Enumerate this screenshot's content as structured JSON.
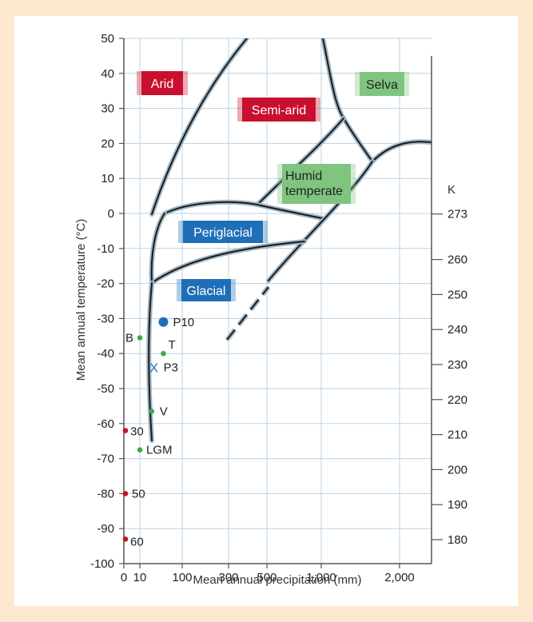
{
  "chart_data": {
    "type": "scatter",
    "xlabel": "Mean annual precipitation (mm)",
    "ylabel": "Mean annual temperature (°C)",
    "y2label": "K",
    "x_ticks": [
      {
        "label": "0",
        "value": 0
      },
      {
        "label": "10",
        "value": 10
      },
      {
        "label": "100",
        "value": 100
      },
      {
        "label": "300",
        "value": 300
      },
      {
        "label": "500",
        "value": 500
      },
      {
        "label": "1,000",
        "value": 1000
      },
      {
        "label": "2,000",
        "value": 2000
      }
    ],
    "ylim": [
      -100,
      50
    ],
    "y_ticks": [
      "50",
      "40",
      "30",
      "20",
      "10",
      "0",
      "-10",
      "-20",
      "-30",
      "-40",
      "-50",
      "-60",
      "-70",
      "-80",
      "-90",
      "-100"
    ],
    "y2_ticks": [
      "273",
      "260",
      "250",
      "240",
      "230",
      "220",
      "210",
      "200",
      "190",
      "180"
    ],
    "y2_values": [
      273,
      260,
      250,
      240,
      230,
      220,
      210,
      200,
      190,
      180
    ],
    "regions": [
      {
        "label": "Arid",
        "color": "#c8102e",
        "text_color": "#ffffff"
      },
      {
        "label": "Semi-arid",
        "color": "#c8102e",
        "text_color": "#ffffff"
      },
      {
        "label": "Selva",
        "color": "#7fc47f",
        "text_color": "#222222"
      },
      {
        "label": "Humid temperate",
        "color": "#7fc47f",
        "text_color": "#222222"
      },
      {
        "label": "Periglacial",
        "color": "#1f6fb8",
        "text_color": "#ffffff"
      },
      {
        "label": "Glacial",
        "color": "#1f6fb8",
        "text_color": "#ffffff"
      }
    ],
    "points": [
      {
        "label": "P10",
        "x": 60,
        "y": -31,
        "color": "#1f6fb8",
        "size": "large"
      },
      {
        "label": "B",
        "x": 10,
        "y": -35.5,
        "color": "#3aaa48",
        "size": "small"
      },
      {
        "label": "T",
        "x": 60,
        "y": -40,
        "color": "#3aaa48",
        "size": "small"
      },
      {
        "label": "P3",
        "marker": "X",
        "x": 40,
        "y": -44,
        "color": "#1f6fb8",
        "size": "cross"
      },
      {
        "label": "V",
        "x": 35,
        "y": -56.5,
        "color": "#3aaa48",
        "size": "small"
      },
      {
        "label": "30",
        "x": 1,
        "y": -62,
        "color": "#c8102e",
        "size": "small"
      },
      {
        "label": "LGM",
        "x": 10,
        "y": -67.5,
        "color": "#3aaa48",
        "size": "small"
      },
      {
        "label": "50",
        "x": 1,
        "y": -80,
        "color": "#c8102e",
        "size": "small"
      },
      {
        "label": "60",
        "x": 1,
        "y": -93,
        "color": "#c8102e",
        "size": "small"
      }
    ],
    "grid": true
  }
}
